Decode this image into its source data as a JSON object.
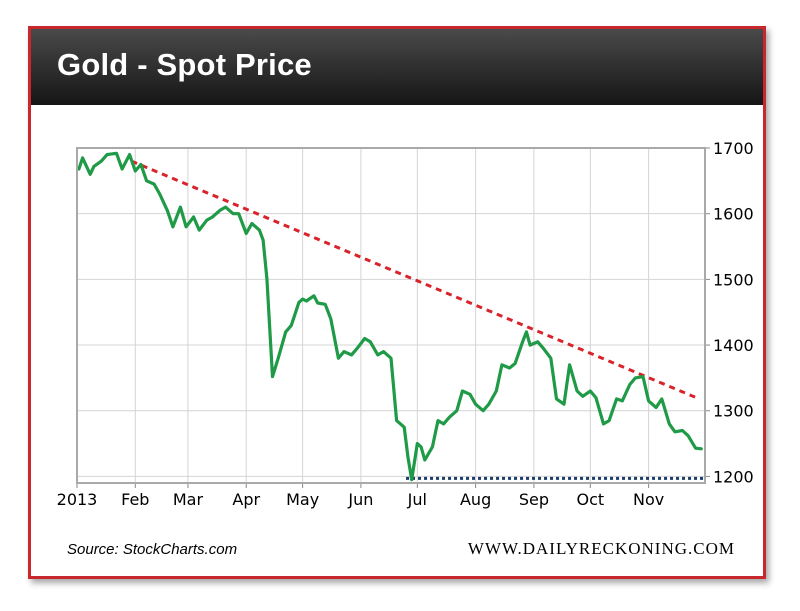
{
  "header": {
    "title": "Gold - Spot Price"
  },
  "footer": {
    "source": "Source: StockCharts.com",
    "website": "WWW.DAILYRECKONING.COM"
  },
  "colors": {
    "price_line": "#1f9a46",
    "resistance": "#d9232a",
    "support": "#1c3c6b",
    "frame": "#c8282d",
    "grid": "#d4d4d4"
  },
  "chart_data": {
    "type": "line",
    "title": "Gold - Spot Price",
    "xlabel": "",
    "ylabel": "",
    "x_tick_labels": [
      "2013",
      "Feb",
      "Mar",
      "Apr",
      "May",
      "Jun",
      "Jul",
      "Aug",
      "Sep",
      "Oct",
      "Nov"
    ],
    "y_ticks": [
      1200,
      1300,
      1400,
      1500,
      1600,
      1700
    ],
    "y_axis_side": "right",
    "ylim": [
      1190,
      1700
    ],
    "grid": true,
    "series": [
      {
        "x": [
          "2013-01-02",
          "2013-01-04",
          "2013-01-08",
          "2013-01-10",
          "2013-01-14",
          "2013-01-17",
          "2013-01-22",
          "2013-01-25",
          "2013-01-29",
          "2013-02-01",
          "2013-02-04",
          "2013-02-07",
          "2013-02-11",
          "2013-02-14",
          "2013-02-18",
          "2013-02-21",
          "2013-02-25",
          "2013-02-28",
          "2013-03-04",
          "2013-03-07",
          "2013-03-11",
          "2013-03-14",
          "2013-03-18",
          "2013-03-21",
          "2013-03-25",
          "2013-03-28",
          "2013-04-01",
          "2013-04-04",
          "2013-04-08",
          "2013-04-10",
          "2013-04-12",
          "2013-04-15",
          "2013-04-18",
          "2013-04-22",
          "2013-04-25",
          "2013-04-29",
          "2013-05-01",
          "2013-05-03",
          "2013-05-07",
          "2013-05-09",
          "2013-05-13",
          "2013-05-16",
          "2013-05-20",
          "2013-05-23",
          "2013-05-27",
          "2013-05-30",
          "2013-06-03",
          "2013-06-06",
          "2013-06-10",
          "2013-06-13",
          "2013-06-17",
          "2013-06-20",
          "2013-06-24",
          "2013-06-26",
          "2013-06-28",
          "2013-07-01",
          "2013-07-03",
          "2013-07-05",
          "2013-07-09",
          "2013-07-12",
          "2013-07-15",
          "2013-07-18",
          "2013-07-22",
          "2013-07-25",
          "2013-07-29",
          "2013-08-01",
          "2013-08-05",
          "2013-08-08",
          "2013-08-12",
          "2013-08-15",
          "2013-08-19",
          "2013-08-22",
          "2013-08-26",
          "2013-08-28",
          "2013-08-30",
          "2013-09-03",
          "2013-09-06",
          "2013-09-10",
          "2013-09-13",
          "2013-09-17",
          "2013-09-20",
          "2013-09-24",
          "2013-09-27",
          "2013-10-01",
          "2013-10-04",
          "2013-10-08",
          "2013-10-11",
          "2013-10-15",
          "2013-10-18",
          "2013-10-22",
          "2013-10-25",
          "2013-10-29",
          "2013-11-01",
          "2013-11-05",
          "2013-11-08",
          "2013-11-12",
          "2013-11-15",
          "2013-11-19",
          "2013-11-22",
          "2013-11-26",
          "2013-11-29"
        ],
        "y": [
          1668,
          1685,
          1660,
          1672,
          1680,
          1690,
          1692,
          1668,
          1690,
          1665,
          1675,
          1650,
          1645,
          1630,
          1605,
          1580,
          1610,
          1580,
          1595,
          1575,
          1590,
          1595,
          1605,
          1610,
          1600,
          1600,
          1570,
          1585,
          1575,
          1560,
          1501,
          1352,
          1380,
          1420,
          1430,
          1465,
          1470,
          1467,
          1475,
          1464,
          1462,
          1440,
          1380,
          1390,
          1385,
          1395,
          1410,
          1405,
          1385,
          1390,
          1380,
          1285,
          1275,
          1230,
          1195,
          1250,
          1245,
          1225,
          1245,
          1285,
          1280,
          1290,
          1300,
          1330,
          1325,
          1310,
          1300,
          1310,
          1330,
          1370,
          1365,
          1372,
          1405,
          1420,
          1400,
          1405,
          1395,
          1380,
          1318,
          1310,
          1370,
          1330,
          1322,
          1330,
          1320,
          1280,
          1285,
          1318,
          1315,
          1340,
          1350,
          1352,
          1315,
          1305,
          1318,
          1280,
          1268,
          1270,
          1262,
          1243,
          1242
        ]
      }
    ],
    "annotations": [
      {
        "type": "resistance_trendline",
        "from": [
          "2013-01-30",
          1680
        ],
        "to": [
          "2013-11-28",
          1318
        ],
        "style": "dashed",
        "color": "#d9232a"
      },
      {
        "type": "support_line",
        "from": [
          "2013-06-25",
          1197
        ],
        "to": [
          "2013-11-30",
          1197
        ],
        "style": "dotted",
        "color": "#1c3c6b"
      }
    ]
  }
}
